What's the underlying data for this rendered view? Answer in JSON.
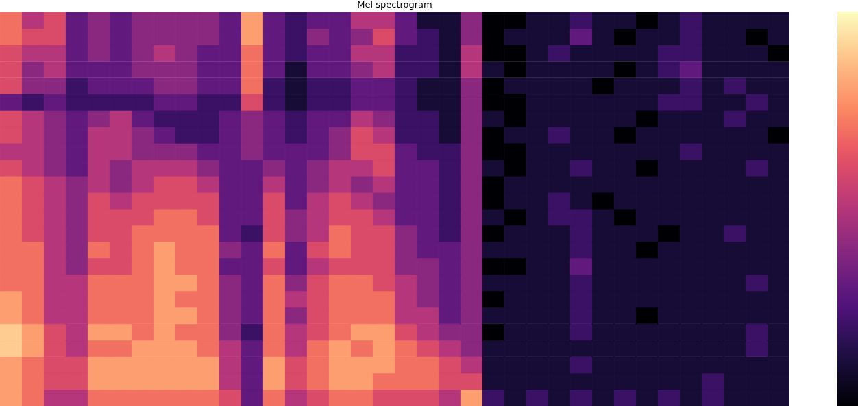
{
  "chart_data": {
    "type": "heatmap",
    "title": "Mel spectrogram",
    "color": "magma",
    "tick_labels": false,
    "grid": false,
    "zlim": [
      0,
      10
    ],
    "z": [
      [
        7,
        5,
        6,
        3,
        4,
        3,
        4,
        4,
        4,
        4,
        3,
        8,
        3,
        2,
        3,
        3,
        5,
        5,
        3,
        1,
        1,
        4,
        0,
        0,
        1,
        1,
        2,
        1,
        1,
        0,
        1,
        2,
        1,
        1,
        1,
        1
      ],
      [
        7,
        6,
        6,
        3,
        4,
        3,
        4,
        4,
        4,
        4,
        3,
        8,
        3,
        2,
        4,
        3,
        4,
        6,
        3,
        2,
        1,
        4,
        0,
        1,
        1,
        1,
        3,
        1,
        0,
        1,
        1,
        2,
        1,
        1,
        0,
        1
      ],
      [
        6,
        5,
        5,
        3,
        4,
        3,
        4,
        5,
        4,
        3,
        3,
        7,
        3,
        2,
        3,
        3,
        5,
        5,
        2,
        2,
        1,
        5,
        0,
        0,
        1,
        2,
        1,
        1,
        1,
        1,
        2,
        2,
        1,
        1,
        1,
        0
      ],
      [
        6,
        4,
        5,
        3,
        3,
        3,
        4,
        4,
        4,
        3,
        3,
        7,
        3,
        1,
        3,
        3,
        4,
        5,
        2,
        2,
        1,
        5,
        1,
        0,
        1,
        1,
        1,
        1,
        0,
        1,
        2,
        3,
        1,
        1,
        1,
        1
      ],
      [
        6,
        4,
        4,
        2,
        3,
        3,
        3,
        4,
        4,
        3,
        3,
        7,
        2,
        1,
        2,
        2,
        3,
        3,
        2,
        1,
        1,
        4,
        0,
        1,
        1,
        1,
        1,
        0,
        1,
        1,
        1,
        2,
        1,
        2,
        1,
        1
      ],
      [
        3,
        2,
        3,
        2,
        2,
        2,
        2,
        3,
        3,
        2,
        2,
        6,
        2,
        1,
        2,
        2,
        3,
        3,
        2,
        1,
        1,
        4,
        0,
        0,
        1,
        1,
        1,
        1,
        1,
        1,
        2,
        2,
        1,
        1,
        2,
        1
      ],
      [
        6,
        5,
        4,
        3,
        4,
        5,
        3,
        2,
        2,
        2,
        3,
        4,
        3,
        2,
        3,
        3,
        5,
        4,
        2,
        2,
        1,
        4,
        1,
        0,
        1,
        1,
        1,
        1,
        1,
        0,
        1,
        1,
        1,
        2,
        1,
        1
      ],
      [
        6,
        5,
        4,
        3,
        5,
        5,
        4,
        3,
        2,
        2,
        3,
        4,
        3,
        2,
        3,
        4,
        6,
        5,
        2,
        2,
        1,
        4,
        0,
        1,
        1,
        2,
        1,
        1,
        0,
        1,
        1,
        1,
        1,
        1,
        1,
        0
      ],
      [
        5,
        5,
        4,
        3,
        5,
        5,
        4,
        4,
        4,
        3,
        3,
        4,
        3,
        3,
        3,
        4,
        6,
        6,
        3,
        2,
        2,
        4,
        0,
        0,
        1,
        1,
        1,
        1,
        1,
        1,
        1,
        2,
        1,
        1,
        1,
        1
      ],
      [
        6,
        5,
        4,
        3,
        5,
        4,
        5,
        5,
        5,
        4,
        3,
        3,
        4,
        3,
        4,
        5,
        5,
        6,
        3,
        3,
        2,
        4,
        1,
        0,
        1,
        1,
        2,
        1,
        1,
        0,
        1,
        1,
        1,
        1,
        2,
        1
      ],
      [
        7,
        6,
        5,
        4,
        5,
        4,
        5,
        6,
        6,
        5,
        3,
        3,
        5,
        3,
        4,
        5,
        4,
        5,
        3,
        3,
        2,
        4,
        0,
        1,
        1,
        1,
        1,
        1,
        1,
        1,
        1,
        1,
        1,
        1,
        1,
        1
      ],
      [
        7,
        6,
        5,
        4,
        6,
        5,
        6,
        6,
        6,
        6,
        3,
        3,
        6,
        3,
        5,
        6,
        5,
        4,
        3,
        3,
        2,
        4,
        0,
        1,
        1,
        2,
        1,
        0,
        1,
        1,
        1,
        1,
        1,
        1,
        1,
        1
      ],
      [
        7,
        6,
        5,
        4,
        6,
        6,
        6,
        7,
        7,
        6,
        3,
        3,
        6,
        4,
        5,
        6,
        6,
        5,
        3,
        3,
        2,
        4,
        1,
        0,
        1,
        2,
        2,
        1,
        0,
        1,
        1,
        1,
        1,
        1,
        1,
        1
      ],
      [
        7,
        6,
        5,
        4,
        6,
        6,
        7,
        7,
        7,
        7,
        3,
        2,
        6,
        4,
        5,
        7,
        6,
        6,
        4,
        3,
        2,
        4,
        0,
        1,
        1,
        1,
        2,
        1,
        1,
        1,
        0,
        1,
        1,
        2,
        1,
        1
      ],
      [
        7,
        7,
        5,
        4,
        7,
        6,
        7,
        8,
        7,
        7,
        4,
        3,
        7,
        3,
        6,
        7,
        6,
        6,
        4,
        3,
        3,
        4,
        1,
        1,
        1,
        1,
        2,
        1,
        1,
        0,
        1,
        1,
        1,
        1,
        1,
        1
      ],
      [
        7,
        7,
        5,
        4,
        6,
        6,
        7,
        8,
        7,
        7,
        3,
        3,
        6,
        3,
        5,
        6,
        6,
        6,
        4,
        4,
        3,
        4,
        0,
        0,
        1,
        1,
        3,
        1,
        1,
        1,
        1,
        1,
        1,
        1,
        1,
        1
      ],
      [
        7,
        7,
        5,
        5,
        7,
        7,
        7,
        8,
        8,
        7,
        4,
        3,
        7,
        4,
        6,
        7,
        7,
        6,
        5,
        4,
        3,
        4,
        1,
        1,
        1,
        1,
        2,
        1,
        1,
        1,
        1,
        1,
        1,
        1,
        2,
        1
      ],
      [
        8,
        7,
        5,
        5,
        7,
        7,
        7,
        8,
        7,
        7,
        4,
        3,
        7,
        5,
        6,
        7,
        7,
        7,
        5,
        4,
        3,
        4,
        0,
        1,
        1,
        1,
        2,
        1,
        1,
        1,
        1,
        1,
        1,
        1,
        1,
        1
      ],
      [
        8,
        7,
        5,
        5,
        7,
        7,
        7,
        8,
        8,
        7,
        4,
        3,
        7,
        4,
        6,
        7,
        7,
        7,
        5,
        5,
        3,
        4,
        1,
        1,
        1,
        1,
        2,
        1,
        1,
        0,
        1,
        1,
        1,
        1,
        1,
        1
      ],
      [
        9,
        8,
        6,
        5,
        8,
        8,
        7,
        8,
        7,
        7,
        4,
        2,
        7,
        5,
        6,
        7,
        8,
        8,
        6,
        5,
        4,
        4,
        0,
        1,
        1,
        1,
        2,
        1,
        1,
        1,
        1,
        1,
        1,
        1,
        2,
        1
      ],
      [
        9,
        8,
        6,
        5,
        7,
        7,
        8,
        8,
        8,
        7,
        5,
        3,
        7,
        5,
        7,
        8,
        7,
        8,
        7,
        6,
        5,
        4,
        1,
        1,
        1,
        1,
        1,
        1,
        1,
        1,
        1,
        1,
        1,
        1,
        2,
        1
      ],
      [
        8,
        7,
        6,
        6,
        8,
        8,
        8,
        8,
        8,
        8,
        5,
        3,
        8,
        6,
        7,
        8,
        8,
        8,
        7,
        7,
        6,
        5,
        1,
        1,
        1,
        1,
        2,
        1,
        1,
        1,
        1,
        1,
        1,
        1,
        1,
        1
      ],
      [
        8,
        7,
        6,
        6,
        8,
        8,
        8,
        8,
        8,
        8,
        5,
        3,
        8,
        6,
        7,
        8,
        8,
        7,
        7,
        7,
        6,
        6,
        1,
        1,
        1,
        1,
        1,
        1,
        1,
        1,
        1,
        1,
        2,
        1,
        1,
        1
      ],
      [
        8,
        7,
        5,
        5,
        7,
        7,
        7,
        7,
        7,
        7,
        6,
        3,
        7,
        5,
        6,
        7,
        7,
        6,
        6,
        6,
        5,
        8,
        2,
        1,
        2,
        1,
        2,
        1,
        2,
        1,
        2,
        1,
        2,
        1,
        1,
        1
      ]
    ]
  }
}
